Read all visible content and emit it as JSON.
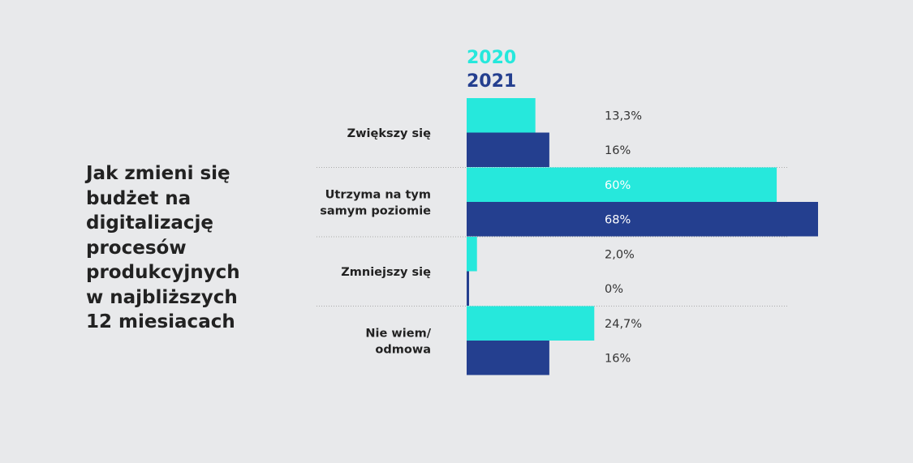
{
  "question_lines": [
    "Jak zmieni się",
    "budżet na",
    "digitalizację",
    "procesów",
    "produkcyjnych",
    "w najbliższych",
    "12 miesiacach"
  ],
  "colors": {
    "series_2020": "#26e8dc",
    "series_2021": "#243f8f",
    "label_dark": "#333333",
    "label_light": "#ffffff",
    "separator": "#aaaaaa"
  },
  "chart_data": {
    "type": "bar",
    "orientation": "horizontal",
    "categories": [
      [
        "Zwiększy się"
      ],
      [
        "Utrzyma na tym",
        "samym poziomie"
      ],
      [
        "Zmniejszy się"
      ],
      [
        "Nie wiem/",
        "odmowa"
      ]
    ],
    "series": [
      {
        "name": "2020",
        "values": [
          13.3,
          60,
          2.0,
          24.7
        ],
        "labels": [
          "13,3%",
          "60%",
          "2,0%",
          "24,7%"
        ]
      },
      {
        "name": "2021",
        "values": [
          16,
          68,
          0,
          16
        ],
        "labels": [
          "16%",
          "68%",
          "0%",
          "16%"
        ]
      }
    ],
    "xlim": [
      0,
      68
    ],
    "legend_position": "top-left",
    "grid": false
  }
}
